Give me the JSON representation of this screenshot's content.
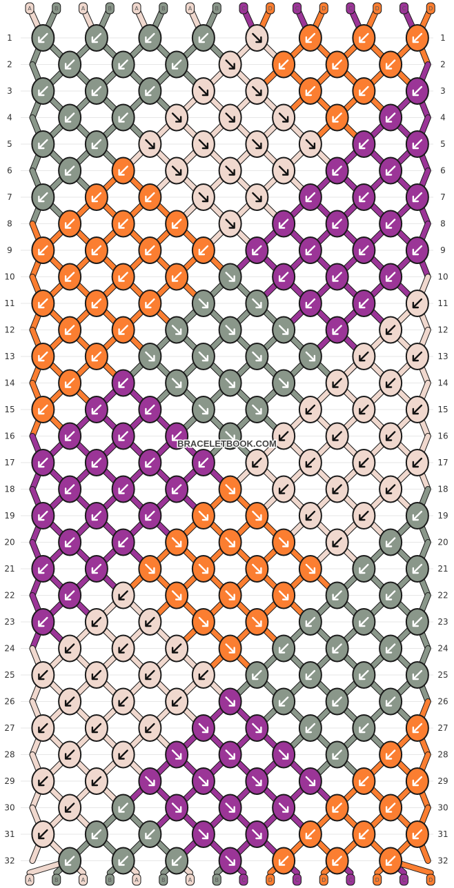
{
  "site_watermark": "BRACELETBOOK.COM",
  "colors": {
    "A": "#f0d8ce",
    "B": "#8a978a",
    "C": "#9b3597",
    "D": "#fb7e31"
  },
  "columns": [
    "A",
    "B",
    "A",
    "B",
    "A",
    "B",
    "A",
    "B",
    "C",
    "D",
    "C",
    "D",
    "C",
    "D",
    "C",
    "D"
  ],
  "row_labels": [
    "1",
    "2",
    "3",
    "4",
    "5",
    "6",
    "7",
    "8",
    "9",
    "10",
    "11",
    "12",
    "13",
    "14",
    "15",
    "16",
    "17",
    "18",
    "19",
    "20",
    "21",
    "22",
    "23",
    "24",
    "25",
    "26",
    "27",
    "28",
    "29",
    "30",
    "31",
    "32"
  ],
  "knots_per_row": [
    8,
    7
  ],
  "knot_colors": [
    [
      "B",
      "B",
      "B",
      "B",
      "A",
      "D",
      "D",
      "D"
    ],
    [
      "B",
      "B",
      "B",
      "A",
      "D",
      "D",
      "D"
    ],
    [
      "B",
      "B",
      "B",
      "A",
      "A",
      "D",
      "D",
      "C"
    ],
    [
      "B",
      "B",
      "A",
      "A",
      "A",
      "D",
      "C"
    ],
    [
      "B",
      "B",
      "A",
      "A",
      "A",
      "A",
      "C",
      "C"
    ],
    [
      "B",
      "D",
      "A",
      "A",
      "A",
      "C",
      "C"
    ],
    [
      "B",
      "D",
      "D",
      "A",
      "A",
      "C",
      "C",
      "C"
    ],
    [
      "D",
      "D",
      "D",
      "A",
      "C",
      "C",
      "C"
    ],
    [
      "D",
      "D",
      "D",
      "D",
      "C",
      "C",
      "C",
      "C"
    ],
    [
      "D",
      "D",
      "D",
      "B",
      "C",
      "C",
      "C"
    ],
    [
      "D",
      "D",
      "D",
      "B",
      "B",
      "C",
      "C",
      "A"
    ],
    [
      "D",
      "D",
      "B",
      "B",
      "B",
      "C",
      "A"
    ],
    [
      "D",
      "D",
      "B",
      "B",
      "B",
      "B",
      "A",
      "A"
    ],
    [
      "D",
      "C",
      "B",
      "B",
      "B",
      "A",
      "A"
    ],
    [
      "D",
      "C",
      "C",
      "B",
      "B",
      "A",
      "A",
      "A"
    ],
    [
      "C",
      "C",
      "C",
      "B",
      "A",
      "A",
      "A"
    ],
    [
      "C",
      "C",
      "C",
      "C",
      "A",
      "A",
      "A",
      "A"
    ],
    [
      "C",
      "C",
      "C",
      "D",
      "A",
      "A",
      "A"
    ],
    [
      "C",
      "C",
      "C",
      "D",
      "D",
      "A",
      "A",
      "B"
    ],
    [
      "C",
      "C",
      "D",
      "D",
      "D",
      "A",
      "B"
    ],
    [
      "C",
      "C",
      "D",
      "D",
      "D",
      "D",
      "B",
      "B"
    ],
    [
      "C",
      "A",
      "D",
      "D",
      "D",
      "B",
      "B"
    ],
    [
      "C",
      "A",
      "A",
      "D",
      "D",
      "B",
      "B",
      "B"
    ],
    [
      "A",
      "A",
      "A",
      "D",
      "B",
      "B",
      "B"
    ],
    [
      "A",
      "A",
      "A",
      "A",
      "B",
      "B",
      "B",
      "B"
    ],
    [
      "A",
      "A",
      "A",
      "C",
      "B",
      "B",
      "B"
    ],
    [
      "A",
      "A",
      "A",
      "C",
      "C",
      "B",
      "B",
      "D"
    ],
    [
      "A",
      "A",
      "C",
      "C",
      "C",
      "B",
      "D"
    ],
    [
      "A",
      "A",
      "C",
      "C",
      "C",
      "C",
      "D",
      "D"
    ],
    [
      "A",
      "B",
      "C",
      "C",
      "C",
      "D",
      "D"
    ],
    [
      "A",
      "B",
      "B",
      "C",
      "C",
      "D",
      "D",
      "D"
    ],
    [
      "B",
      "B",
      "B",
      "C",
      "D",
      "D",
      "D"
    ]
  ],
  "knot_arrows": [
    [
      "SW",
      "SW",
      "SW",
      "SW",
      "SE",
      "SW",
      "SW",
      "SW"
    ],
    [
      "SW",
      "SW",
      "SW",
      "SE",
      "SW",
      "SW",
      "SW"
    ],
    [
      "SW",
      "SW",
      "SW",
      "SE",
      "SE",
      "SW",
      "SW",
      "SW"
    ],
    [
      "SW",
      "SW",
      "SE",
      "SE",
      "SE",
      "SW",
      "SW"
    ],
    [
      "SW",
      "SW",
      "SE",
      "SE",
      "SE",
      "SE",
      "SW",
      "SW"
    ],
    [
      "SW",
      "SW",
      "SE",
      "SE",
      "SE",
      "SW",
      "SW"
    ],
    [
      "SW",
      "SW",
      "SW",
      "SE",
      "SE",
      "SW",
      "SW",
      "SW"
    ],
    [
      "SW",
      "SW",
      "SW",
      "SE",
      "SW",
      "SW",
      "SW"
    ],
    [
      "SW",
      "SW",
      "SW",
      "SW",
      "SW",
      "SW",
      "SW",
      "SW"
    ],
    [
      "SW",
      "SW",
      "SW",
      "SE",
      "SW",
      "SW",
      "SW"
    ],
    [
      "SW",
      "SW",
      "SW",
      "SE",
      "SE",
      "SW",
      "SW",
      "SW"
    ],
    [
      "SW",
      "SW",
      "SE",
      "SE",
      "SE",
      "SW",
      "SW"
    ],
    [
      "SW",
      "SW",
      "SE",
      "SE",
      "SE",
      "SE",
      "SW",
      "SW"
    ],
    [
      "SW",
      "SW",
      "SE",
      "SE",
      "SE",
      "SW",
      "SW"
    ],
    [
      "SW",
      "SW",
      "SW",
      "SE",
      "SE",
      "SW",
      "SW",
      "SW"
    ],
    [
      "SW",
      "SW",
      "SW",
      "SE",
      "SW",
      "SW",
      "SW"
    ],
    [
      "SW",
      "SW",
      "SW",
      "SW",
      "SW",
      "SW",
      "SW",
      "SW"
    ],
    [
      "SW",
      "SW",
      "SW",
      "SE",
      "SW",
      "SW",
      "SW"
    ],
    [
      "SW",
      "SW",
      "SW",
      "SE",
      "SE",
      "SW",
      "SW",
      "SW"
    ],
    [
      "SW",
      "SW",
      "SE",
      "SE",
      "SE",
      "SW",
      "SW"
    ],
    [
      "SW",
      "SW",
      "SE",
      "SE",
      "SE",
      "SE",
      "SW",
      "SW"
    ],
    [
      "SW",
      "SW",
      "SE",
      "SE",
      "SE",
      "SW",
      "SW"
    ],
    [
      "SW",
      "SW",
      "SW",
      "SE",
      "SE",
      "SW",
      "SW",
      "SW"
    ],
    [
      "SW",
      "SW",
      "SW",
      "SE",
      "SW",
      "SW",
      "SW"
    ],
    [
      "SW",
      "SW",
      "SW",
      "SW",
      "SW",
      "SW",
      "SW",
      "SW"
    ],
    [
      "SW",
      "SW",
      "SW",
      "SE",
      "SW",
      "SW",
      "SW"
    ],
    [
      "SW",
      "SW",
      "SW",
      "SE",
      "SE",
      "SW",
      "SW",
      "SW"
    ],
    [
      "SW",
      "SW",
      "SE",
      "SE",
      "SE",
      "SW",
      "SW"
    ],
    [
      "SW",
      "SW",
      "SE",
      "SE",
      "SE",
      "SE",
      "SW",
      "SW"
    ],
    [
      "SW",
      "SW",
      "SE",
      "SE",
      "SE",
      "SW",
      "SW"
    ],
    [
      "SW",
      "SW",
      "SW",
      "SE",
      "SE",
      "SW",
      "SW",
      "SW"
    ],
    [
      "SW",
      "SW",
      "SW",
      "SE",
      "SW",
      "SW",
      "SW"
    ]
  ]
}
